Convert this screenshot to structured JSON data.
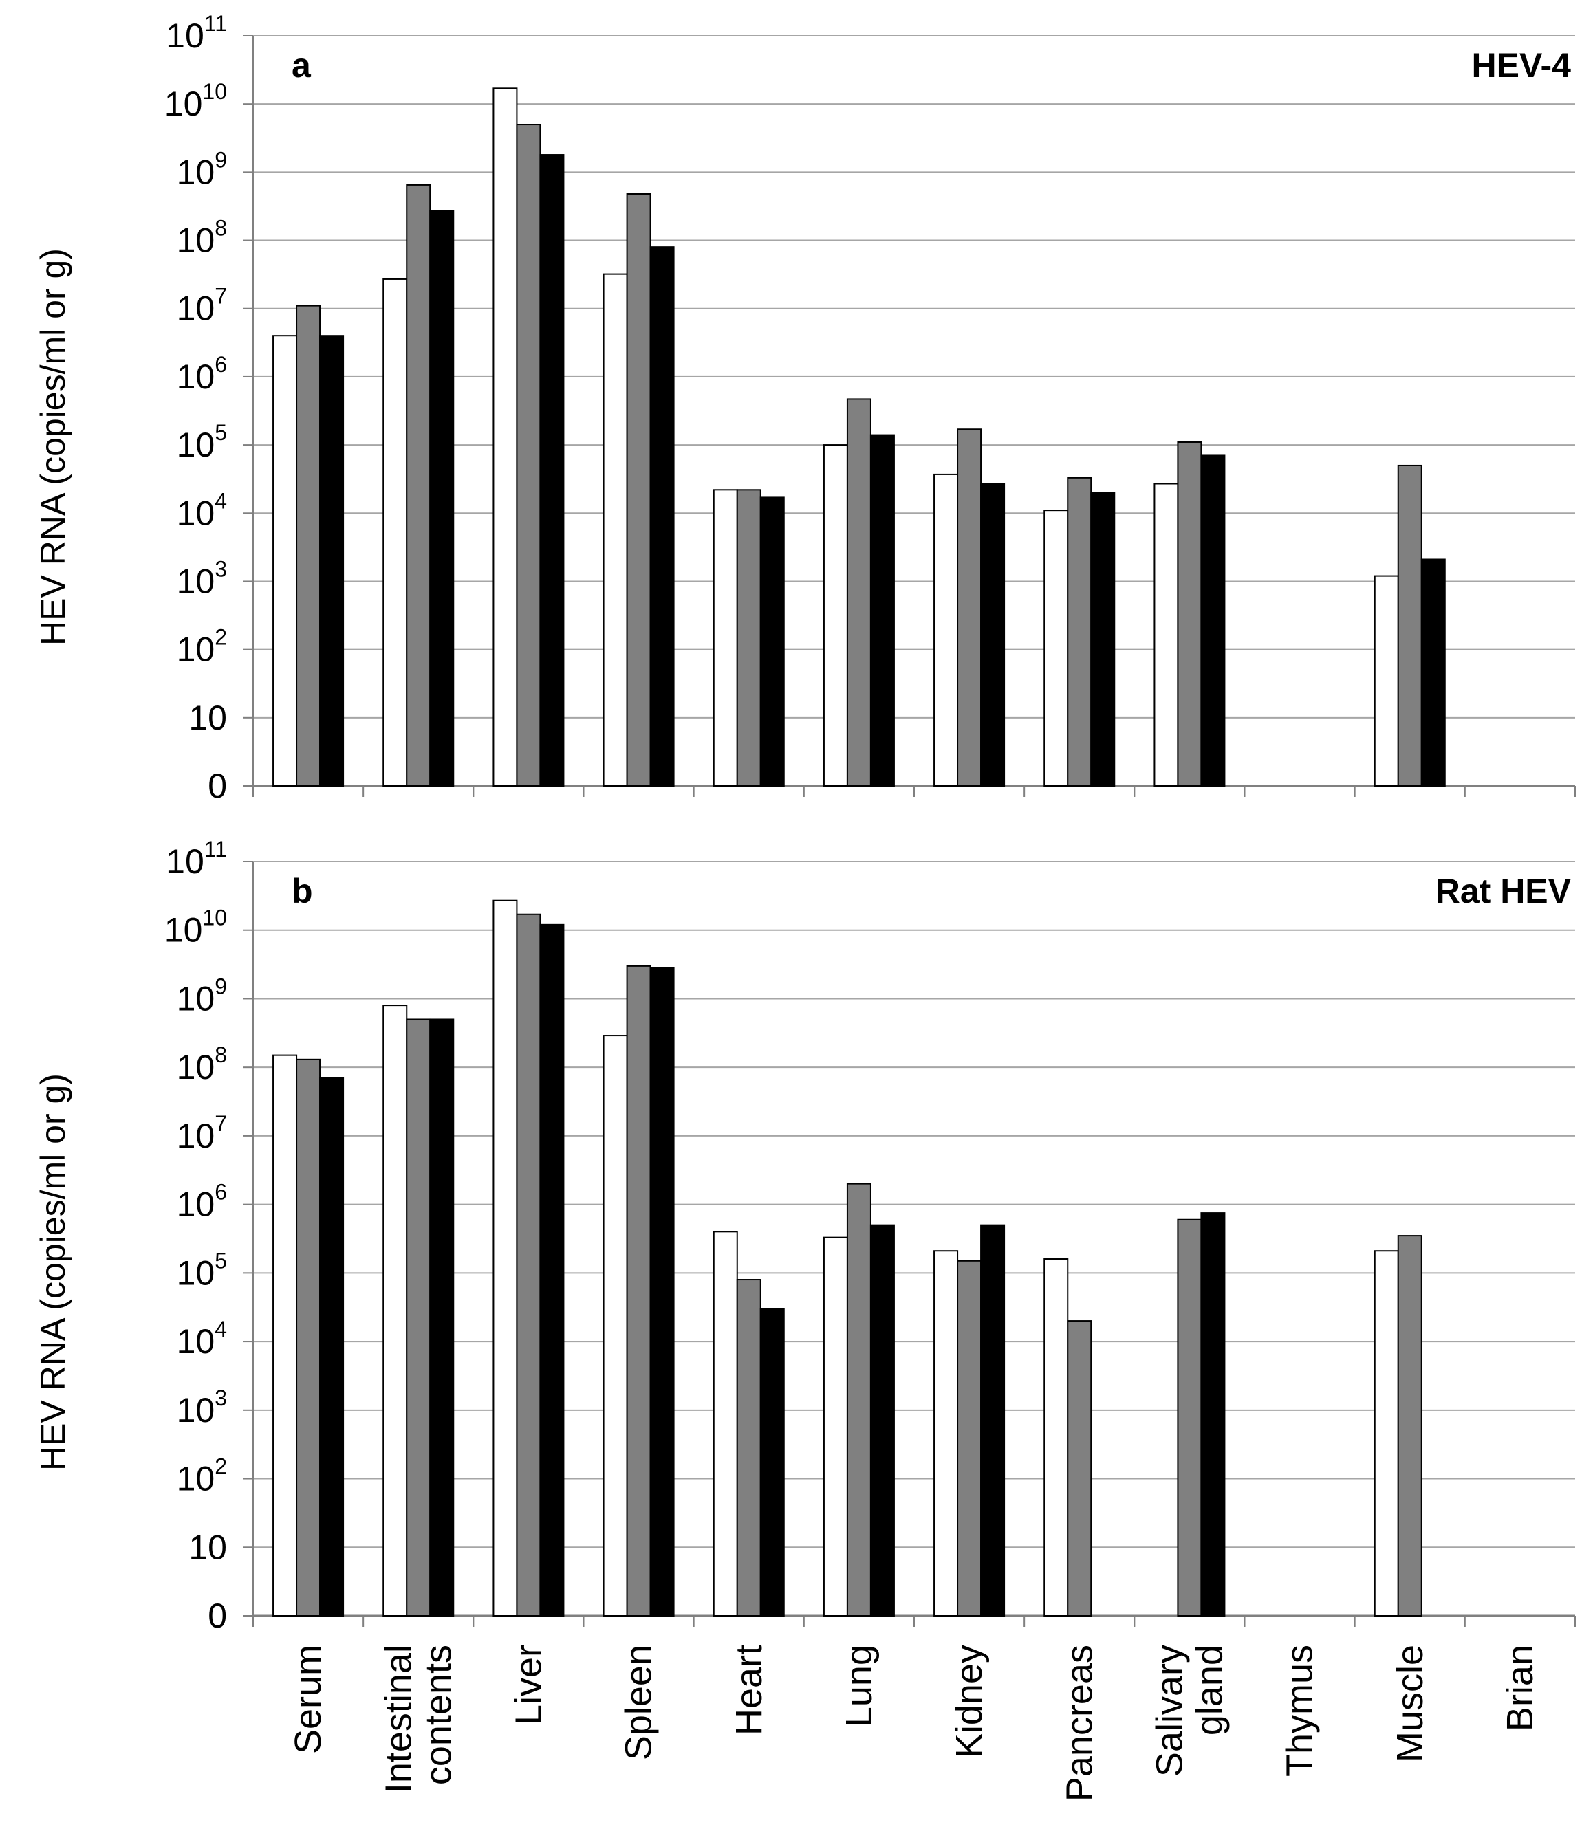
{
  "chart_data": [
    {
      "type": "bar",
      "panel_letter": "a",
      "title": "HEV-4",
      "ylabel": "HEV RNA (copies/ml or g)",
      "y_scale": "log",
      "y_tick_labels": [
        "0",
        "10",
        "10^2",
        "10^3",
        "10^4",
        "10^5",
        "10^6",
        "10^7",
        "10^8",
        "10^9",
        "10^10",
        "10^11"
      ],
      "ylim": [
        1,
        100000000000
      ],
      "grid": true,
      "series_colors": [
        "#ffffff",
        "#808080",
        "#000000"
      ],
      "categories": [
        "Serum",
        "Intestinal contents",
        "Liver",
        "Spleen",
        "Heart",
        "Lung",
        "Kidney",
        "Pancreas",
        "Salivary gland",
        "Thymus",
        "Muscle",
        "Brian"
      ],
      "series": [
        {
          "values": [
            4000000,
            27000000,
            17000000000,
            32000000,
            22000,
            100000,
            37000,
            11000,
            27000,
            null,
            1200,
            null
          ]
        },
        {
          "values": [
            11000000,
            650000000,
            5000000000,
            480000000,
            22000,
            470000,
            170000,
            33000,
            110000,
            null,
            50000,
            null
          ]
        },
        {
          "values": [
            4000000,
            270000000,
            1800000000,
            80000000,
            17000,
            140000,
            27000,
            20000,
            70000,
            null,
            2100,
            null
          ]
        }
      ]
    },
    {
      "type": "bar",
      "panel_letter": "b",
      "title": "Rat HEV",
      "ylabel": "HEV RNA (copies/ml or g)",
      "y_scale": "log",
      "y_tick_labels": [
        "0",
        "10",
        "10^2",
        "10^3",
        "10^4",
        "10^5",
        "10^6",
        "10^7",
        "10^8",
        "10^9",
        "10^10",
        "10^11"
      ],
      "ylim": [
        1,
        100000000000
      ],
      "grid": true,
      "series_colors": [
        "#ffffff",
        "#808080",
        "#000000"
      ],
      "categories": [
        "Serum",
        "Intestinal contents",
        "Liver",
        "Spleen",
        "Heart",
        "Lung",
        "Kidney",
        "Pancreas",
        "Salivary gland",
        "Thymus",
        "Muscle",
        "Brian"
      ],
      "category_label_lines": [
        [
          "Serum"
        ],
        [
          "Intestinal",
          "contents"
        ],
        [
          "Liver"
        ],
        [
          "Spleen"
        ],
        [
          "Heart"
        ],
        [
          "Lung"
        ],
        [
          "Kidney"
        ],
        [
          "Pancreas"
        ],
        [
          "Salivary",
          "gland"
        ],
        [
          "Thymus"
        ],
        [
          "Muscle"
        ],
        [
          "Brian"
        ]
      ],
      "series": [
        {
          "values": [
            150000000,
            800000000,
            27000000000,
            290000000,
            400000,
            330000,
            210000,
            160000,
            null,
            null,
            210000,
            null
          ]
        },
        {
          "values": [
            130000000,
            500000000,
            17000000000,
            3000000000,
            80000,
            2000000,
            150000,
            20000,
            600000,
            null,
            350000,
            null
          ]
        },
        {
          "values": [
            70000000,
            500000000,
            12000000000,
            2800000000,
            30000,
            500000,
            500000,
            null,
            750000,
            null,
            null,
            null
          ]
        }
      ]
    }
  ]
}
